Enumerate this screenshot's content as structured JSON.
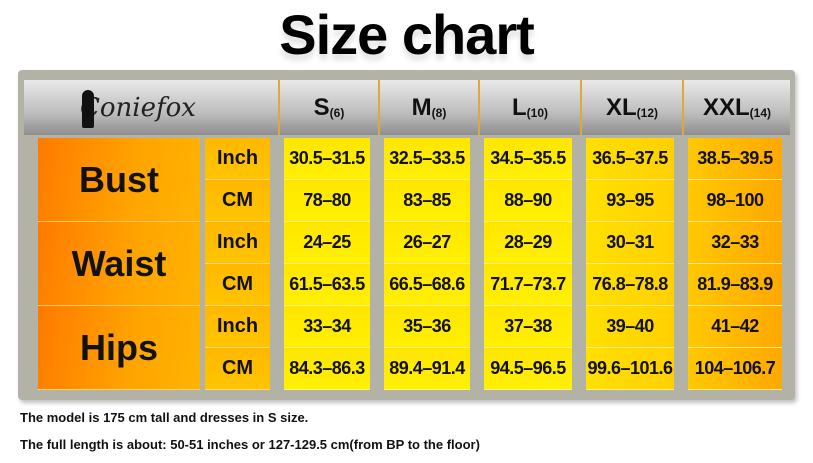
{
  "title": "Size chart",
  "brand": "Coniefox",
  "sizes": [
    {
      "label": "S",
      "num": "(6)"
    },
    {
      "label": "M",
      "num": "(8)"
    },
    {
      "label": "L",
      "num": "(10)"
    },
    {
      "label": "XL",
      "num": "(12)"
    },
    {
      "label": "XXL",
      "num": "(14)"
    }
  ],
  "units": {
    "inch": "Inch",
    "cm": "CM"
  },
  "measurements": [
    {
      "name": "Bust",
      "inch": [
        "30.5–31.5",
        "32.5–33.5",
        "34.5–35.5",
        "36.5–37.5",
        "38.5–39.5"
      ],
      "cm": [
        "78–80",
        "83–85",
        "88–90",
        "93–95",
        "98–100"
      ]
    },
    {
      "name": "Waist",
      "inch": [
        "24–25",
        "26–27",
        "28–29",
        "30–31",
        "32–33"
      ],
      "cm": [
        "61.5–63.5",
        "66.5–68.6",
        "71.7–73.7",
        "76.8–78.8",
        "81.9–83.9"
      ]
    },
    {
      "name": "Hips",
      "inch": [
        "33–34",
        "35–36",
        "37–38",
        "39–40",
        "41–42"
      ],
      "cm": [
        "84.3–86.3",
        "89.4–91.4",
        "94.5–96.5",
        "99.6–101.6",
        "104–106.7"
      ]
    }
  ],
  "notes": [
    "The model is 175 cm tall and dresses in S size.",
    "The full length is about: 50-51 inches or 127-129.5 cm(from BP to the floor)"
  ]
}
